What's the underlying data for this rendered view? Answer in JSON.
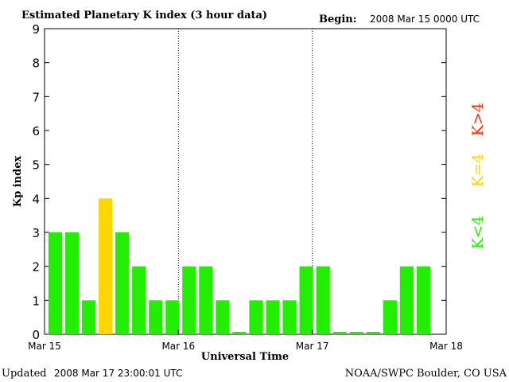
{
  "header": {
    "title": "Estimated Planetary K index (3 hour data)",
    "begin_label": "Begin:",
    "begin_value": "2008 Mar 15 0000 UTC"
  },
  "footer": {
    "updated_label": "Updated",
    "updated_value": "2008 Mar 17 23:00:01 UTC",
    "source": "NOAA/SWPC Boulder, CO USA"
  },
  "legend": {
    "low": {
      "label": "K<4",
      "color": "#22ee00"
    },
    "mid": {
      "label": "K=4",
      "color": "#ffd700"
    },
    "high": {
      "label": "K>4",
      "color": "#ff2a00"
    }
  },
  "chart_data": {
    "type": "bar",
    "title": "Estimated Planetary K index (3 hour data)",
    "xlabel": "Universal Time",
    "ylabel": "Kp index",
    "ylim": [
      0,
      9
    ],
    "yticks": [
      "0",
      "1",
      "2",
      "3",
      "4",
      "5",
      "6",
      "7",
      "8",
      "9"
    ],
    "xticks": [
      "Mar 15",
      "Mar 16",
      "Mar 17",
      "Mar 18"
    ],
    "interval_hours": 3,
    "values": [
      3,
      3,
      1,
      4,
      3,
      2,
      1,
      1,
      2,
      2,
      1,
      0,
      1,
      1,
      1,
      2,
      2,
      0,
      0,
      0,
      1,
      2,
      2
    ],
    "grid": "dotted vertical lines at day boundaries",
    "colors": {
      "below_4": "#22ee00",
      "equal_4": "#ffd700",
      "above_4": "#ff2a00"
    }
  }
}
